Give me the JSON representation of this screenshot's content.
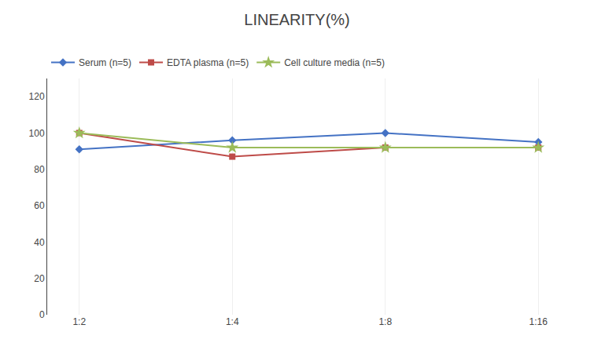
{
  "chart_data": {
    "type": "line",
    "title": "LINEARITY(%)",
    "categories": [
      "1:2",
      "1:4",
      "1:8",
      "1:16"
    ],
    "series": [
      {
        "name": "Serum (n=5)",
        "color": "#4472C4",
        "marker": "diamond",
        "values": [
          91,
          96,
          100,
          95
        ]
      },
      {
        "name": "EDTA plasma (n=5)",
        "color": "#BE4B48",
        "marker": "square",
        "values": [
          100,
          87,
          92,
          92
        ]
      },
      {
        "name": "Cell culture media (n=5)",
        "color": "#9BBB59",
        "marker": "star",
        "values": [
          100,
          92,
          92,
          92
        ]
      }
    ],
    "ylim": [
      0,
      130
    ],
    "yticks": [
      0,
      20,
      40,
      60,
      80,
      100,
      120
    ],
    "grid": "x",
    "legend": "top"
  }
}
